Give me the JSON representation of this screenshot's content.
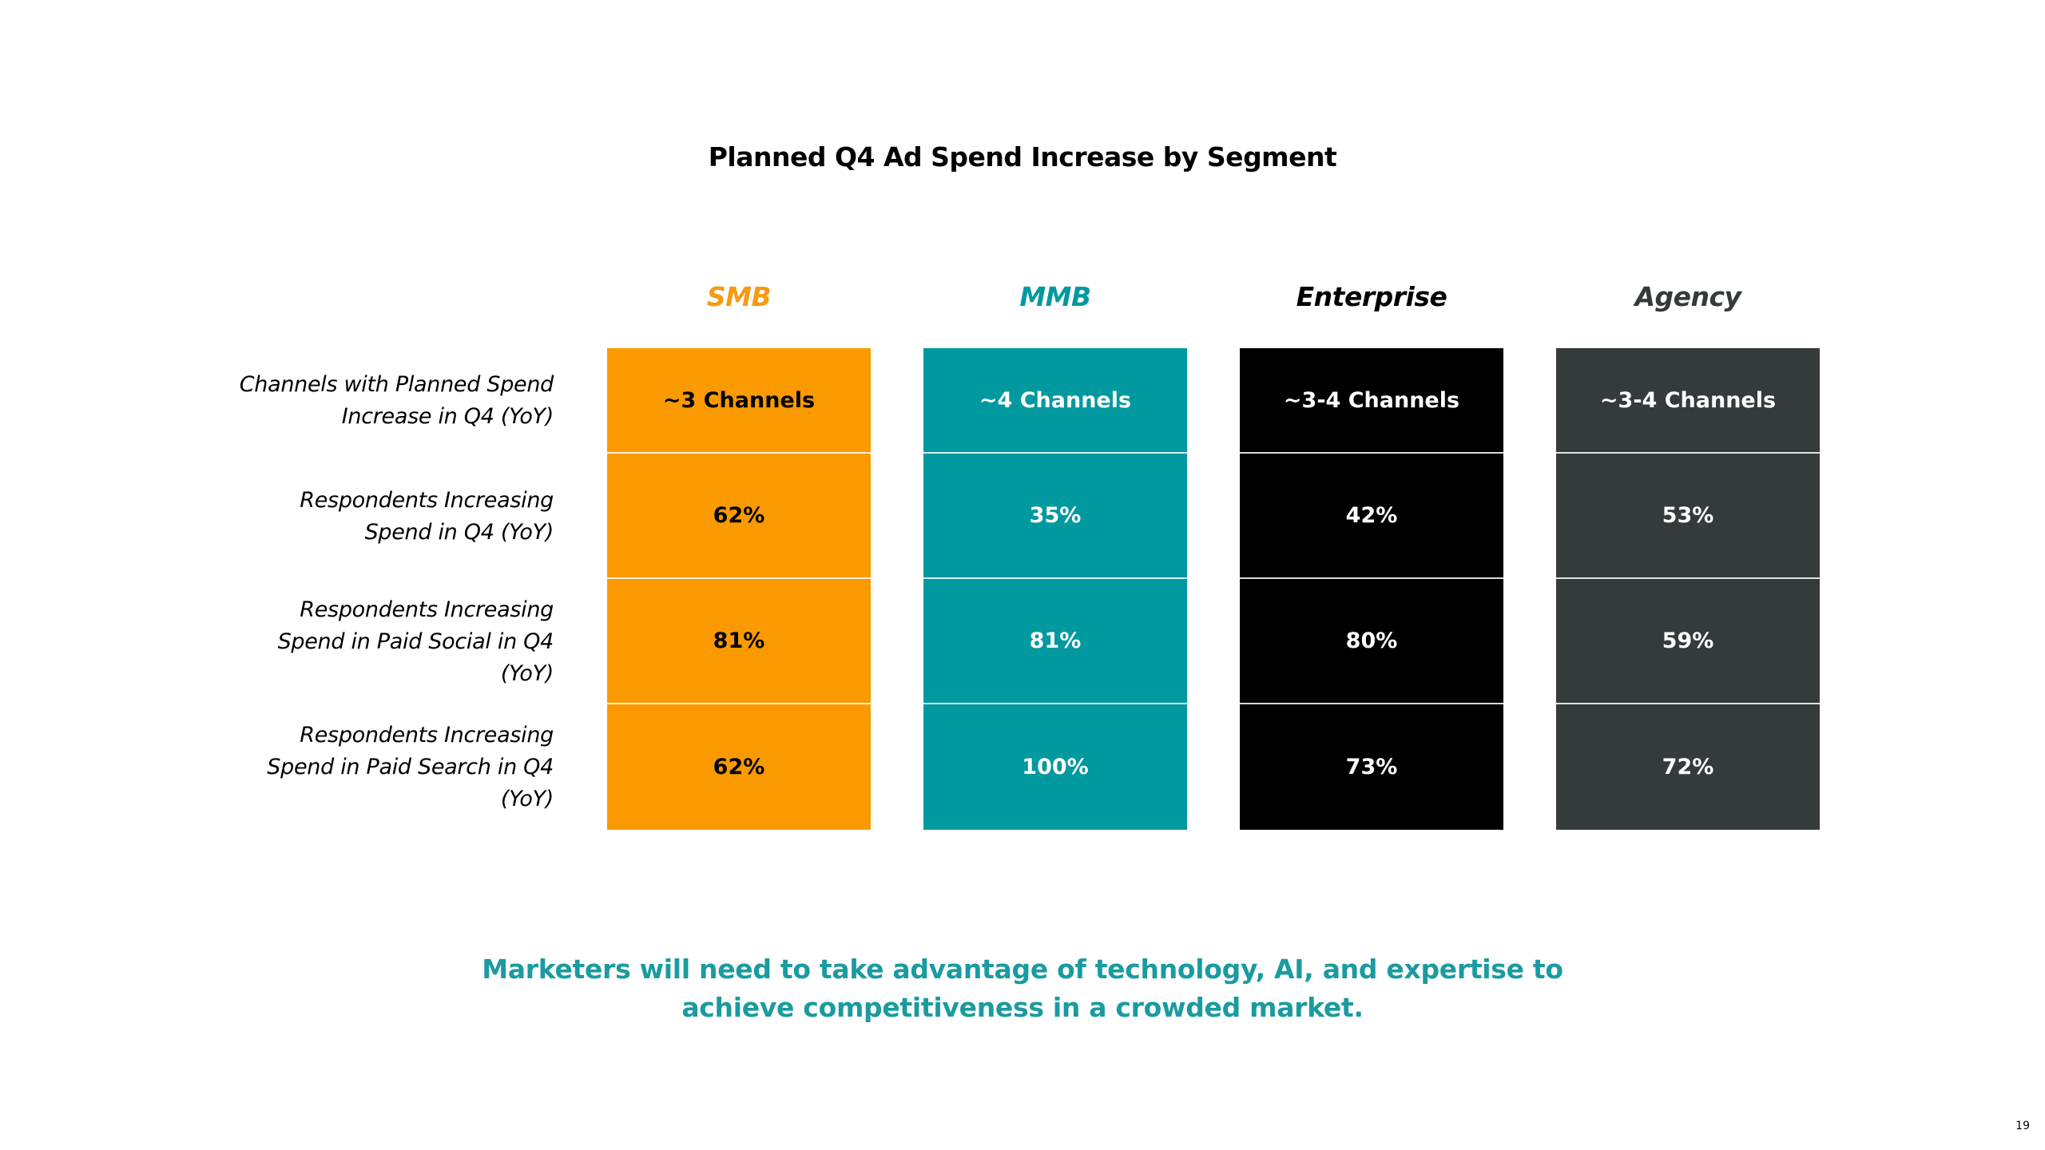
{
  "colors": {
    "smb": "#fa9a00",
    "mmb": "#00999f",
    "enterprise": "#000000",
    "agency": "#353a3c",
    "footer_text": "#1a9ba0"
  },
  "footer": {
    "line1": "Marketers will need to take advantage of technology, AI, and expertise to",
    "line2": "achieve competitiveness in a crowded market."
  },
  "page_number": "19",
  "chart_data": {
    "type": "table",
    "title": "Planned Q4 Ad Spend Increase by Segment",
    "columns": [
      {
        "key": "smb",
        "label": "SMB",
        "header_color": "#f59a13",
        "text_color": "#000000"
      },
      {
        "key": "mmb",
        "label": "MMB",
        "header_color": "#00999f",
        "text_color": "#ffffff"
      },
      {
        "key": "enterprise",
        "label": "Enterprise",
        "header_color": "#000000",
        "text_color": "#ffffff"
      },
      {
        "key": "agency",
        "label": "Agency",
        "header_color": "#353a3c",
        "text_color": "#ffffff"
      }
    ],
    "rows": [
      {
        "label": [
          "Channels with Planned Spend",
          "Increase in Q4 (YoY)"
        ],
        "values": [
          "~3 Channels",
          "~4 Channels",
          "~3-4 Channels",
          "~3-4 Channels"
        ]
      },
      {
        "label": [
          "Respondents Increasing",
          "Spend in Q4 (YoY)"
        ],
        "values": [
          "62%",
          "35%",
          "42%",
          "53%"
        ]
      },
      {
        "label": [
          "Respondents Increasing",
          "Spend in Paid Social in Q4",
          "(YoY)"
        ],
        "values": [
          "81%",
          "81%",
          "80%",
          "59%"
        ]
      },
      {
        "label": [
          "Respondents Increasing",
          "Spend in Paid Search in Q4",
          "(YoY)"
        ],
        "values": [
          "62%",
          "100%",
          "73%",
          "72%"
        ]
      }
    ]
  }
}
